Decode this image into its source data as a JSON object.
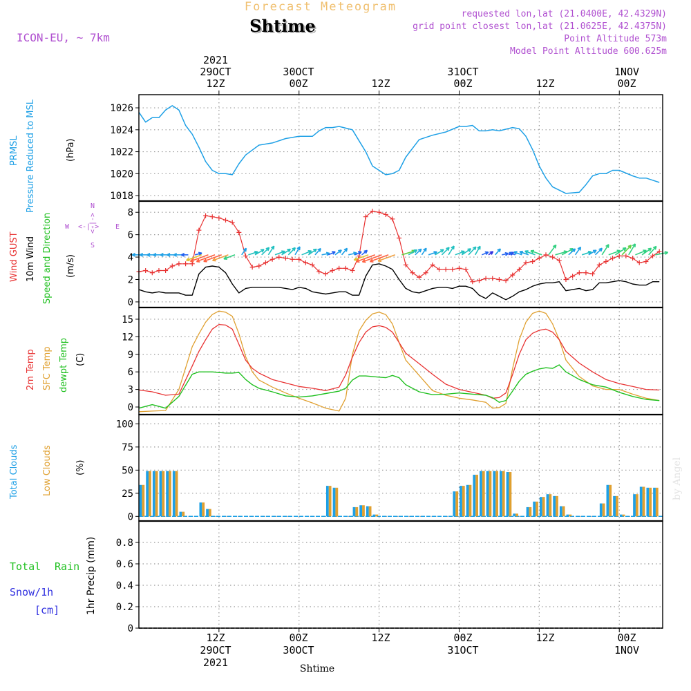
{
  "header": {
    "top_title": "Forecast Meteogram",
    "location": "Shtime",
    "model": "ICON-EU, ~ 7km",
    "requested": "requested lon,lat (21.0400E, 42.4329N)",
    "grid": "grid point closest lon,lat (21.0625E, 42.4375N)",
    "point_alt": "Point Altitude 573m",
    "model_alt": "Model Point Altitude 600.625m",
    "footer_location": "Shtime",
    "watermark": "by Angel"
  },
  "colors": {
    "pressure": "#1ea0e6",
    "gust": "#e83232",
    "wind": "#000000",
    "temp2m": "#e83232",
    "sfc": "#e0a030",
    "dewpt": "#20c020",
    "total_cloud": "#1ea0e6",
    "low_cloud": "#e0a030",
    "rain": "#20c020",
    "snow": "#3030e0",
    "meta": "#b050d0",
    "title": "#f0c070"
  },
  "time_axis": {
    "top_ticks": [
      {
        "h": 12,
        "lines": [
          "2021",
          "29OCT",
          "12Z"
        ]
      },
      {
        "h": 24,
        "lines": [
          "30OCT",
          "00Z"
        ]
      },
      {
        "h": 36,
        "lines": [
          "12Z"
        ]
      },
      {
        "h": 48,
        "lines": [
          "31OCT",
          "00Z"
        ]
      },
      {
        "h": 60,
        "lines": [
          "12Z"
        ]
      },
      {
        "h": 72,
        "lines": [
          "1NOV",
          "00Z"
        ]
      }
    ],
    "bottom_ticks": [
      {
        "h": 12,
        "lines": [
          "12Z",
          "29OCT",
          "2021"
        ]
      },
      {
        "h": 24,
        "lines": [
          "00Z",
          "30OCT"
        ]
      },
      {
        "h": 36,
        "lines": [
          "12Z"
        ]
      },
      {
        "h": 48,
        "lines": [
          "00Z",
          "31OCT"
        ]
      },
      {
        "h": 60,
        "lines": [
          "12Z"
        ]
      },
      {
        "h": 72,
        "lines": [
          "00Z",
          "1NOV"
        ]
      }
    ]
  },
  "panels": {
    "pressure": {
      "labels": [
        "PRMSL",
        "Pressure Reduced to MSL",
        "(hPa)"
      ],
      "yticks": [
        1018,
        1020,
        1022,
        1024,
        1026
      ]
    },
    "wind": {
      "labels": [
        "Wind GUST",
        "10m Wind",
        "Speed and Direction",
        "(m/s)"
      ],
      "yticks": [
        0,
        2,
        4,
        6,
        8
      ],
      "compass": {
        "n": "N",
        "s": "S",
        "w": "W",
        "e": "E",
        "arrow_h": "<-|->",
        "arrow_v": "<-|->"
      }
    },
    "temp": {
      "labels": [
        "2m Temp",
        "SFC Temp",
        "dewpt Temp",
        "(C)"
      ],
      "yticks": [
        0,
        3,
        6,
        9,
        12,
        15
      ]
    },
    "cloud": {
      "labels": [
        "Total Clouds",
        "Low Clouds",
        "(%)"
      ],
      "yticks": [
        0,
        25,
        50,
        75,
        100
      ]
    },
    "precip": {
      "labels": [
        "Total",
        "Rain",
        "Snow/1h",
        "[cm]",
        "1hr Precip (mm)"
      ],
      "yticks": [
        "0",
        "0.2",
        "0.4",
        "0.6",
        "0.8"
      ]
    }
  },
  "chart_data": [
    {
      "type": "line",
      "title": "PRMSL Pressure Reduced to MSL",
      "ylabel": "(hPa)",
      "ylim": [
        1017.5,
        1027.2
      ],
      "x_hours": [
        0,
        1,
        2,
        3,
        4,
        5,
        6,
        7,
        8,
        9,
        10,
        11,
        12,
        13,
        14,
        15,
        16,
        18,
        20,
        22,
        24,
        26,
        27,
        28,
        29,
        30,
        32,
        33,
        34,
        35,
        36,
        37,
        38,
        39,
        40,
        42,
        44,
        46,
        48,
        49,
        50,
        51,
        52,
        53,
        54,
        56,
        57,
        58,
        59,
        60,
        61,
        62,
        64,
        66,
        67,
        68,
        69,
        70,
        71,
        72,
        74,
        75,
        76,
        77,
        78
      ],
      "series": [
        {
          "name": "PRMSL",
          "values": [
            1025.6,
            1024.7,
            1025.1,
            1025.1,
            1025.8,
            1026.2,
            1025.8,
            1024.4,
            1023.6,
            1022.4,
            1021.1,
            1020.3,
            1020.0,
            1020.0,
            1019.9,
            1020.9,
            1021.7,
            1022.6,
            1022.8,
            1023.2,
            1023.4,
            1023.4,
            1023.9,
            1024.2,
            1024.2,
            1024.3,
            1024.0,
            1023.0,
            1022.0,
            1020.7,
            1020.3,
            1019.9,
            1020.0,
            1020.3,
            1021.5,
            1023.1,
            1023.5,
            1023.8,
            1024.3,
            1024.3,
            1024.4,
            1023.9,
            1023.9,
            1024.0,
            1023.9,
            1024.2,
            1024.1,
            1023.4,
            1022.2,
            1020.7,
            1019.6,
            1018.8,
            1018.2,
            1018.3,
            1019.0,
            1019.8,
            1020.0,
            1020.0,
            1020.3,
            1020.3,
            1019.8,
            1019.6,
            1019.6,
            1019.4,
            1019.2
          ]
        }
      ]
    },
    {
      "type": "line",
      "title": "Wind GUST / 10m Wind Speed and Direction",
      "ylabel": "(m/s)",
      "ylim": [
        -0.5,
        9
      ],
      "x_hours": [
        0,
        1,
        2,
        3,
        4,
        5,
        6,
        7,
        8,
        9,
        10,
        11,
        12,
        13,
        14,
        15,
        16,
        17,
        18,
        19,
        20,
        21,
        22,
        23,
        24,
        25,
        26,
        27,
        28,
        29,
        30,
        31,
        32,
        33,
        34,
        35,
        36,
        37,
        38,
        39,
        40,
        41,
        42,
        43,
        44,
        45,
        46,
        47,
        48,
        49,
        50,
        51,
        52,
        53,
        54,
        55,
        56,
        57,
        58,
        59,
        60,
        61,
        62,
        63,
        64,
        65,
        66,
        67,
        68,
        69,
        70,
        71,
        72,
        73,
        74,
        75,
        76,
        77,
        78
      ],
      "series": [
        {
          "name": "Wind GUST",
          "marker": "+",
          "values": [
            2.7,
            2.8,
            2.6,
            2.8,
            2.8,
            3.2,
            3.4,
            3.4,
            3.4,
            6.4,
            7.7,
            7.6,
            7.5,
            7.3,
            7.1,
            6.2,
            4.1,
            3.1,
            3.2,
            3.5,
            3.8,
            4.0,
            3.9,
            3.8,
            3.8,
            3.5,
            3.3,
            2.7,
            2.5,
            2.8,
            3.0,
            3.0,
            2.8,
            4.1,
            7.6,
            8.1,
            8.0,
            7.8,
            7.4,
            5.7,
            3.3,
            2.6,
            2.2,
            2.6,
            3.3,
            2.9,
            2.9,
            2.9,
            3.0,
            2.9,
            1.8,
            1.9,
            2.1,
            2.1,
            2.0,
            1.9,
            2.4,
            2.9,
            3.5,
            3.6,
            3.9,
            4.2,
            4.0,
            3.7,
            2.0,
            2.3,
            2.6,
            2.6,
            2.5,
            3.3,
            3.6,
            3.9,
            4.1,
            4.1,
            3.9,
            3.5,
            3.6,
            4.1,
            4.5
          ]
        },
        {
          "name": "10m Wind",
          "values": [
            1.1,
            0.9,
            0.8,
            0.9,
            0.8,
            0.8,
            0.8,
            0.6,
            0.6,
            2.5,
            3.1,
            3.2,
            3.1,
            2.6,
            1.6,
            0.8,
            1.2,
            1.3,
            1.3,
            1.3,
            1.3,
            1.3,
            1.2,
            1.1,
            1.3,
            1.2,
            0.9,
            0.8,
            0.7,
            0.8,
            0.9,
            0.9,
            0.6,
            0.6,
            2.3,
            3.3,
            3.4,
            3.2,
            2.9,
            2.0,
            1.2,
            0.9,
            0.8,
            1.0,
            1.2,
            1.3,
            1.3,
            1.2,
            1.4,
            1.4,
            1.2,
            0.6,
            0.3,
            0.8,
            0.5,
            0.2,
            0.5,
            0.9,
            1.1,
            1.4,
            1.6,
            1.7,
            1.7,
            1.8,
            1.0,
            1.1,
            1.2,
            1.0,
            1.1,
            1.7,
            1.7,
            1.8,
            1.9,
            1.8,
            1.6,
            1.5,
            1.5,
            1.8,
            1.8
          ]
        }
      ]
    },
    {
      "type": "line",
      "title": "2m Temp / SFC Temp / dewpt Temp",
      "ylabel": "(C)",
      "ylim": [
        -1.3,
        17
      ],
      "x_hours": [
        0,
        2,
        4,
        6,
        8,
        9,
        10,
        11,
        12,
        13,
        14,
        15,
        16,
        17,
        18,
        20,
        22,
        24,
        26,
        28,
        30,
        31,
        32,
        33,
        34,
        35,
        36,
        37,
        38,
        39,
        40,
        42,
        44,
        46,
        48,
        50,
        52,
        53,
        54,
        55,
        56,
        57,
        58,
        59,
        60,
        61,
        62,
        63,
        64,
        66,
        68,
        70,
        72,
        74,
        76,
        78
      ],
      "series": [
        {
          "name": "2m Temp",
          "values": [
            2.9,
            2.6,
            2.0,
            2.2,
            7.0,
            9.5,
            11.5,
            13.3,
            14.1,
            14.0,
            13.3,
            10.7,
            8.0,
            6.6,
            5.8,
            4.7,
            4.1,
            3.5,
            3.2,
            2.8,
            3.4,
            5.5,
            8.5,
            11.0,
            12.8,
            13.7,
            13.9,
            13.6,
            12.8,
            11.0,
            9.2,
            7.4,
            5.6,
            3.9,
            3.0,
            2.5,
            2.0,
            1.5,
            1.6,
            2.4,
            5.5,
            9.0,
            11.5,
            12.6,
            13.1,
            13.3,
            12.8,
            11.5,
            9.5,
            7.5,
            6.0,
            4.7,
            4.0,
            3.5,
            3.0,
            2.9
          ]
        },
        {
          "name": "SFC Temp",
          "values": [
            -0.8,
            -0.7,
            -0.6,
            3.0,
            10.3,
            12.5,
            14.5,
            15.8,
            16.4,
            16.2,
            15.5,
            12.5,
            8.6,
            6.0,
            4.6,
            3.4,
            2.4,
            1.5,
            0.7,
            -0.2,
            -0.7,
            1.5,
            9.0,
            13.0,
            14.8,
            15.9,
            16.2,
            15.8,
            14.2,
            11.0,
            8.0,
            5.4,
            2.8,
            2.0,
            1.5,
            1.2,
            0.8,
            -0.2,
            -0.1,
            0.6,
            6.5,
            11.5,
            14.5,
            16.0,
            16.4,
            16.0,
            14.2,
            11.5,
            8.0,
            5.2,
            3.6,
            3.0,
            3.0,
            2.2,
            1.5,
            1.1
          ]
        },
        {
          "name": "dewpt Temp",
          "values": [
            -0.2,
            0.4,
            -0.2,
            1.8,
            5.6,
            6.0,
            6.0,
            6.0,
            5.9,
            5.8,
            5.8,
            5.9,
            4.7,
            3.8,
            3.2,
            2.6,
            1.9,
            1.7,
            1.9,
            2.3,
            2.7,
            3.2,
            4.6,
            5.3,
            5.3,
            5.2,
            5.1,
            5.0,
            5.4,
            5.0,
            3.8,
            2.6,
            2.1,
            2.2,
            2.4,
            2.2,
            2.0,
            1.6,
            0.8,
            1.1,
            2.7,
            4.4,
            5.6,
            6.1,
            6.5,
            6.7,
            6.6,
            7.2,
            6.0,
            4.7,
            3.8,
            3.4,
            2.5,
            1.8,
            1.3,
            1.1
          ]
        }
      ]
    },
    {
      "type": "bar",
      "title": "Total Clouds / Low Clouds",
      "ylabel": "(%)",
      "ylim": [
        -5,
        110
      ],
      "x_hours": [
        0,
        1,
        2,
        3,
        4,
        5,
        6,
        7,
        8,
        9,
        10,
        11,
        12,
        13,
        14,
        15,
        16,
        17,
        18,
        19,
        20,
        21,
        22,
        23,
        24,
        25,
        26,
        27,
        28,
        29,
        30,
        31,
        32,
        33,
        34,
        35,
        36,
        37,
        38,
        39,
        40,
        41,
        42,
        43,
        44,
        45,
        46,
        47,
        48,
        49,
        50,
        51,
        52,
        53,
        54,
        55,
        56,
        57,
        58,
        59,
        60,
        61,
        62,
        63,
        64,
        65,
        66,
        67,
        68,
        69,
        70,
        71,
        72,
        73,
        74,
        75,
        76,
        77
      ],
      "series": [
        {
          "name": "Total Clouds",
          "values": [
            34,
            49,
            49,
            49,
            49,
            49,
            5,
            0,
            0,
            15,
            8,
            0,
            0,
            0,
            0,
            0,
            0,
            0,
            0,
            0,
            0,
            0,
            0,
            0,
            0,
            0,
            0,
            0,
            33,
            31,
            0,
            0,
            10,
            12,
            11,
            2,
            0,
            0,
            0,
            0,
            0,
            0,
            0,
            0,
            0,
            0,
            0,
            27,
            33,
            34,
            45,
            49,
            49,
            49,
            49,
            48,
            3,
            0,
            10,
            16,
            21,
            24,
            22,
            11,
            2,
            0,
            0,
            0,
            0,
            14,
            34,
            22,
            2,
            0,
            24,
            32,
            31,
            31
          ]
        },
        {
          "name": "Low Clouds",
          "values": [
            34,
            49,
            49,
            49,
            49,
            49,
            5,
            0,
            0,
            15,
            8,
            0,
            0,
            0,
            0,
            0,
            0,
            0,
            0,
            0,
            0,
            0,
            0,
            0,
            0,
            0,
            0,
            0,
            33,
            31,
            0,
            0,
            10,
            12,
            11,
            2,
            0,
            0,
            0,
            0,
            0,
            0,
            0,
            0,
            0,
            0,
            0,
            27,
            33,
            34,
            45,
            49,
            49,
            49,
            49,
            48,
            3,
            0,
            10,
            16,
            21,
            24,
            22,
            11,
            2,
            0,
            0,
            0,
            0,
            14,
            34,
            22,
            2,
            0,
            24,
            32,
            31,
            31
          ]
        }
      ]
    },
    {
      "type": "bar",
      "title": "1hr Precip",
      "ylabel": "1hr Precip (mm)",
      "ylim": [
        0,
        1.0
      ],
      "series": [
        {
          "name": "Total Rain",
          "values": [
            0
          ]
        }
      ]
    }
  ]
}
